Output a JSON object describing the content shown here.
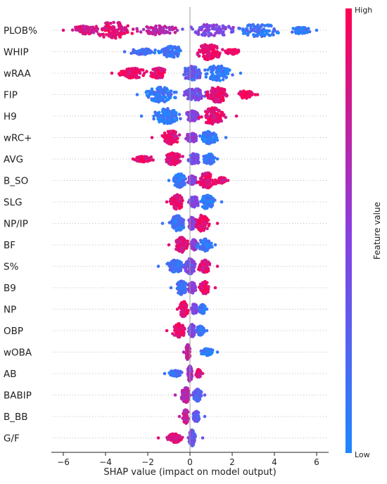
{
  "chart_data": {
    "type": "scatter",
    "subtype": "shap-beeswarm",
    "xlabel": "SHAP value (impact on model output)",
    "xlim": [
      -6.6,
      6.6
    ],
    "xticks": [
      -6,
      -4,
      -2,
      0,
      2,
      4,
      6
    ],
    "colorbar": {
      "title": "Feature value",
      "high_label": "High",
      "low_label": "Low",
      "low_color": "#1e88ff",
      "high_color": "#ff0052"
    },
    "features": [
      {
        "name": "PLOB%",
        "min": -6.0,
        "max": 6.0,
        "clusters": [
          {
            "c": -3.6,
            "s": 1.0,
            "w": 0.95,
            "v": 0.88
          },
          {
            "c": -5.0,
            "s": 0.6,
            "w": 0.45,
            "v": 0.82
          },
          {
            "c": -1.5,
            "s": 0.9,
            "w": 0.5,
            "v": 0.7
          },
          {
            "c": 1.0,
            "s": 1.2,
            "w": 0.65,
            "v": 0.45
          },
          {
            "c": 3.3,
            "s": 1.0,
            "w": 0.75,
            "v": 0.12
          },
          {
            "c": 5.2,
            "s": 0.5,
            "w": 0.35,
            "v": 0.1
          }
        ]
      },
      {
        "name": "WHIP",
        "min": -3.1,
        "max": 2.3,
        "clusters": [
          {
            "c": -2.3,
            "s": 0.6,
            "w": 0.3,
            "v": 0.18
          },
          {
            "c": -0.9,
            "s": 0.6,
            "w": 0.65,
            "v": 0.15
          },
          {
            "c": 0.9,
            "s": 0.6,
            "w": 0.95,
            "v": 0.9
          },
          {
            "c": 2.0,
            "s": 0.3,
            "w": 0.25,
            "v": 0.95
          }
        ]
      },
      {
        "name": "wRAA",
        "min": -3.7,
        "max": 2.4,
        "clusters": [
          {
            "c": -2.7,
            "s": 0.6,
            "w": 0.55,
            "v": 0.92
          },
          {
            "c": -1.5,
            "s": 0.4,
            "w": 0.6,
            "v": 0.85
          },
          {
            "c": 0.1,
            "s": 0.5,
            "w": 0.8,
            "v": 0.3
          },
          {
            "c": 1.3,
            "s": 0.6,
            "w": 0.9,
            "v": 0.1
          }
        ]
      },
      {
        "name": "FIP",
        "min": -2.5,
        "max": 3.2,
        "clusters": [
          {
            "c": -1.4,
            "s": 0.7,
            "w": 0.9,
            "v": 0.12
          },
          {
            "c": 0.2,
            "s": 0.5,
            "w": 0.7,
            "v": 0.4
          },
          {
            "c": 1.3,
            "s": 0.5,
            "w": 0.95,
            "v": 0.9
          },
          {
            "c": 2.6,
            "s": 0.4,
            "w": 0.4,
            "v": 0.95
          }
        ]
      },
      {
        "name": "H9",
        "min": -2.3,
        "max": 2.2,
        "clusters": [
          {
            "c": -1.1,
            "s": 0.6,
            "w": 0.9,
            "v": 0.1
          },
          {
            "c": 0.1,
            "s": 0.3,
            "w": 0.6,
            "v": 0.5
          },
          {
            "c": 1.1,
            "s": 0.6,
            "w": 1.0,
            "v": 0.88
          }
        ]
      },
      {
        "name": "wRC+",
        "min": -1.8,
        "max": 1.7,
        "clusters": [
          {
            "c": -0.9,
            "s": 0.4,
            "w": 0.8,
            "v": 0.88
          },
          {
            "c": 0.1,
            "s": 0.3,
            "w": 0.5,
            "v": 0.5
          },
          {
            "c": 0.9,
            "s": 0.4,
            "w": 0.7,
            "v": 0.1
          }
        ]
      },
      {
        "name": "AVG",
        "min": -2.7,
        "max": 1.3,
        "clusters": [
          {
            "c": -2.2,
            "s": 0.4,
            "w": 0.3,
            "v": 0.92
          },
          {
            "c": -0.8,
            "s": 0.4,
            "w": 0.7,
            "v": 0.88
          },
          {
            "c": 0.2,
            "s": 0.3,
            "w": 0.6,
            "v": 0.4
          },
          {
            "c": 0.9,
            "s": 0.3,
            "w": 0.6,
            "v": 0.1
          }
        ]
      },
      {
        "name": "B_SO",
        "min": -1.0,
        "max": 1.8,
        "clusters": [
          {
            "c": -0.5,
            "s": 0.3,
            "w": 0.8,
            "v": 0.12
          },
          {
            "c": 0.1,
            "s": 0.2,
            "w": 0.5,
            "v": 0.5
          },
          {
            "c": 0.8,
            "s": 0.4,
            "w": 0.9,
            "v": 0.9
          },
          {
            "c": 1.5,
            "s": 0.2,
            "w": 0.3,
            "v": 0.85
          }
        ]
      },
      {
        "name": "SLG",
        "min": -1.1,
        "max": 1.5,
        "clusters": [
          {
            "c": -0.6,
            "s": 0.3,
            "w": 0.85,
            "v": 0.9
          },
          {
            "c": 0.2,
            "s": 0.25,
            "w": 0.6,
            "v": 0.45
          },
          {
            "c": 0.8,
            "s": 0.35,
            "w": 0.8,
            "v": 0.1
          }
        ]
      },
      {
        "name": "NP/IP",
        "min": -1.3,
        "max": 1.3,
        "clusters": [
          {
            "c": -0.6,
            "s": 0.35,
            "w": 0.9,
            "v": 0.15
          },
          {
            "c": 0.1,
            "s": 0.2,
            "w": 0.7,
            "v": 0.5
          },
          {
            "c": 0.6,
            "s": 0.3,
            "w": 1.0,
            "v": 0.92
          }
        ]
      },
      {
        "name": "BF",
        "min": -1.0,
        "max": 1.2,
        "clusters": [
          {
            "c": -0.4,
            "s": 0.3,
            "w": 0.9,
            "v": 0.88
          },
          {
            "c": 0.2,
            "s": 0.2,
            "w": 0.6,
            "v": 0.5
          },
          {
            "c": 0.7,
            "s": 0.3,
            "w": 0.7,
            "v": 0.12
          }
        ]
      },
      {
        "name": "S%",
        "min": -1.5,
        "max": 1.3,
        "clusters": [
          {
            "c": -0.7,
            "s": 0.4,
            "w": 0.7,
            "v": 0.15
          },
          {
            "c": 0.0,
            "s": 0.25,
            "w": 0.9,
            "v": 0.45
          },
          {
            "c": 0.7,
            "s": 0.3,
            "w": 0.7,
            "v": 0.88
          }
        ]
      },
      {
        "name": "B9",
        "min": -0.9,
        "max": 1.2,
        "clusters": [
          {
            "c": -0.4,
            "s": 0.25,
            "w": 0.8,
            "v": 0.15
          },
          {
            "c": 0.1,
            "s": 0.2,
            "w": 0.6,
            "v": 0.5
          },
          {
            "c": 0.7,
            "s": 0.25,
            "w": 0.7,
            "v": 0.88
          }
        ]
      },
      {
        "name": "NP",
        "min": -0.6,
        "max": 0.8,
        "clusters": [
          {
            "c": -0.3,
            "s": 0.2,
            "w": 0.9,
            "v": 0.9
          },
          {
            "c": 0.2,
            "s": 0.15,
            "w": 0.6,
            "v": 0.45
          },
          {
            "c": 0.6,
            "s": 0.15,
            "w": 0.5,
            "v": 0.12
          }
        ]
      },
      {
        "name": "OBP",
        "min": -1.1,
        "max": 0.8,
        "clusters": [
          {
            "c": -0.5,
            "s": 0.3,
            "w": 0.8,
            "v": 0.9
          },
          {
            "c": 0.1,
            "s": 0.15,
            "w": 0.7,
            "v": 0.45
          },
          {
            "c": 0.5,
            "s": 0.2,
            "w": 0.5,
            "v": 0.12
          }
        ]
      },
      {
        "name": "wOBA",
        "min": -0.3,
        "max": 1.3,
        "clusters": [
          {
            "c": -0.1,
            "s": 0.1,
            "w": 0.9,
            "v": 0.7
          },
          {
            "c": 0.8,
            "s": 0.3,
            "w": 0.35,
            "v": 0.1
          }
        ]
      },
      {
        "name": "AB",
        "min": -1.2,
        "max": 0.6,
        "clusters": [
          {
            "c": -0.7,
            "s": 0.3,
            "w": 0.3,
            "v": 0.15
          },
          {
            "c": 0.0,
            "s": 0.12,
            "w": 0.9,
            "v": 0.6
          },
          {
            "c": 0.4,
            "s": 0.12,
            "w": 0.45,
            "v": 0.85
          }
        ]
      },
      {
        "name": "BABIP",
        "min": -0.7,
        "max": 0.7,
        "clusters": [
          {
            "c": -0.2,
            "s": 0.2,
            "w": 0.9,
            "v": 0.7
          },
          {
            "c": 0.35,
            "s": 0.2,
            "w": 0.7,
            "v": 0.3
          }
        ]
      },
      {
        "name": "B_BB",
        "min": -0.5,
        "max": 0.7,
        "clusters": [
          {
            "c": -0.2,
            "s": 0.15,
            "w": 0.8,
            "v": 0.75
          },
          {
            "c": 0.3,
            "s": 0.15,
            "w": 0.6,
            "v": 0.25
          }
        ]
      },
      {
        "name": "G/F",
        "min": -1.5,
        "max": 0.6,
        "clusters": [
          {
            "c": -0.7,
            "s": 0.35,
            "w": 0.5,
            "v": 0.9
          },
          {
            "c": 0.1,
            "s": 0.15,
            "w": 0.95,
            "v": 0.35
          }
        ]
      }
    ]
  }
}
